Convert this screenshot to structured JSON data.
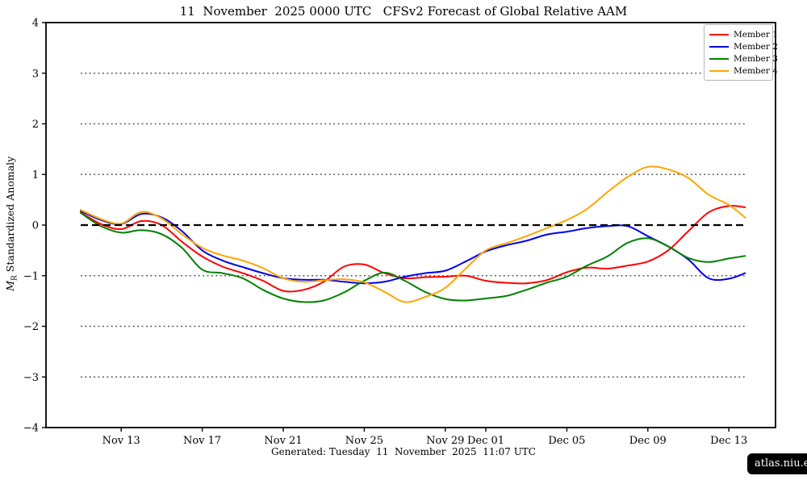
{
  "title": "11  November  2025 0000 UTC   CFSv2 Forecast of Global Relative AAM",
  "footer": "Generated: Tuesday  11  November  2025  11:07 UTC",
  "badge": "atlas.niu.edu",
  "ylabel": {
    "symbol": "M",
    "subscript": "R",
    "text": " Standardized Anomaly"
  },
  "colors": {
    "member1": "#ff0000",
    "member2": "#0000ee",
    "member3": "#008000",
    "member4": "#ffa500",
    "zero_line": "#000000",
    "dotted_line": "#4d4d4d",
    "spine": "#000000",
    "badge_bg": "#000000",
    "badge_text": "#ffffff"
  },
  "chart_data": {
    "type": "line",
    "title": "11 November 2025 0000 UTC CFSv2 Forecast of Global Relative AAM",
    "xlabel": "",
    "ylabel": "M_R Standardized Anomaly",
    "ylim": [
      -4,
      4
    ],
    "y_ticks": [
      4,
      3,
      2,
      1,
      0,
      -1,
      -2,
      -3,
      -4
    ],
    "x_unit": "days since 11 Nov 2025 0000 UTC",
    "xlim_days": [
      -1.7,
      34.3
    ],
    "x_ticks": [
      {
        "label": "Nov 13",
        "day": 2
      },
      {
        "label": "Nov 17",
        "day": 6
      },
      {
        "label": "Nov 21",
        "day": 10
      },
      {
        "label": "Nov 25",
        "day": 14
      },
      {
        "label": "Nov 29",
        "day": 18
      },
      {
        "label": "Dec 01",
        "day": 20
      },
      {
        "label": "Dec 05",
        "day": 24
      },
      {
        "label": "Dec 09",
        "day": 28
      },
      {
        "label": "Dec 13",
        "day": 32
      }
    ],
    "grid": "horizontal dotted reference lines at ±1, ±2, ±3; bold dashed line at 0",
    "ref_lines": {
      "zero_dashed": 0,
      "dotted": [
        3,
        2,
        1,
        -1,
        -2,
        -3
      ]
    },
    "legend_position": "top-right",
    "x": [
      0,
      1,
      2,
      3,
      4,
      5,
      6,
      7,
      8,
      9,
      10,
      11,
      12,
      13,
      14,
      15,
      16,
      17,
      18,
      19,
      20,
      21,
      22,
      23,
      24,
      25,
      26,
      27,
      28,
      29,
      30,
      31,
      32,
      32.8
    ],
    "series": [
      {
        "name": "Member 1",
        "color_key": "member1",
        "values": [
          0.25,
          0.02,
          -0.08,
          0.08,
          0.0,
          -0.33,
          -0.62,
          -0.82,
          -0.95,
          -1.1,
          -1.3,
          -1.28,
          -1.12,
          -0.82,
          -0.78,
          -0.95,
          -1.05,
          -1.03,
          -1.02,
          -1.0,
          -1.1,
          -1.14,
          -1.15,
          -1.09,
          -0.93,
          -0.84,
          -0.86,
          -0.8,
          -0.72,
          -0.5,
          -0.12,
          0.25,
          0.38,
          0.35
        ]
      },
      {
        "name": "Member 2",
        "color_key": "member2",
        "values": [
          0.28,
          0.1,
          0.02,
          0.22,
          0.15,
          -0.12,
          -0.5,
          -0.7,
          -0.83,
          -0.95,
          -1.05,
          -1.08,
          -1.08,
          -1.12,
          -1.15,
          -1.12,
          -1.02,
          -0.95,
          -0.9,
          -0.72,
          -0.52,
          -0.4,
          -0.31,
          -0.19,
          -0.13,
          -0.06,
          -0.02,
          -0.02,
          -0.22,
          -0.42,
          -0.68,
          -1.05,
          -1.06,
          -0.95
        ]
      },
      {
        "name": "Member 3",
        "color_key": "member3",
        "values": [
          0.24,
          -0.02,
          -0.15,
          -0.1,
          -0.18,
          -0.45,
          -0.88,
          -0.95,
          -1.05,
          -1.28,
          -1.45,
          -1.52,
          -1.49,
          -1.33,
          -1.1,
          -0.94,
          -1.1,
          -1.32,
          -1.46,
          -1.49,
          -1.45,
          -1.4,
          -1.28,
          -1.14,
          -1.02,
          -0.8,
          -0.62,
          -0.35,
          -0.26,
          -0.42,
          -0.65,
          -0.73,
          -0.66,
          -0.61
        ]
      },
      {
        "name": "Member 4",
        "color_key": "member4",
        "values": [
          0.3,
          0.12,
          0.03,
          0.26,
          0.13,
          -0.18,
          -0.45,
          -0.6,
          -0.7,
          -0.85,
          -1.05,
          -1.12,
          -1.09,
          -1.07,
          -1.13,
          -1.32,
          -1.52,
          -1.42,
          -1.24,
          -0.86,
          -0.5,
          -0.36,
          -0.22,
          -0.06,
          0.1,
          0.32,
          0.65,
          0.95,
          1.15,
          1.1,
          0.93,
          0.6,
          0.4,
          0.15
        ]
      }
    ]
  }
}
